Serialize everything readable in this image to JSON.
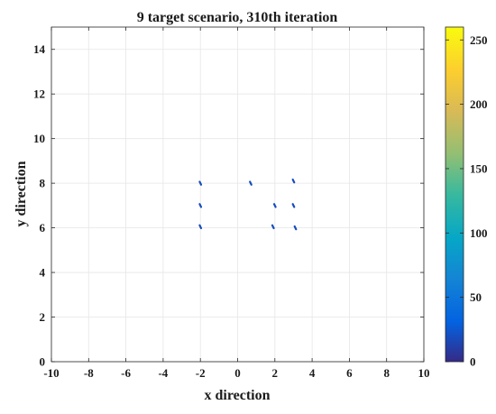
{
  "chart_data": {
    "type": "scatter",
    "title": "9 target scenario, 310th iteration",
    "xlabel": "x direction",
    "ylabel": "y direction",
    "xlim": [
      -10,
      10
    ],
    "ylim": [
      0,
      15
    ],
    "xticks": [
      -10,
      -8,
      -6,
      -4,
      -2,
      0,
      2,
      4,
      6,
      8,
      10
    ],
    "yticks": [
      0,
      2,
      4,
      6,
      8,
      10,
      12,
      14
    ],
    "grid": true,
    "colorbar": {
      "colormap": "parula",
      "range": [
        0,
        260
      ],
      "ticks": [
        0,
        50,
        100,
        150,
        200,
        250
      ]
    },
    "points": [
      {
        "x": -2.0,
        "y": 8.0,
        "value": 20
      },
      {
        "x": 0.7,
        "y": 8.0,
        "value": 20
      },
      {
        "x": 3.0,
        "y": 8.1,
        "value": 20
      },
      {
        "x": -2.0,
        "y": 7.0,
        "value": 20
      },
      {
        "x": 2.0,
        "y": 7.0,
        "value": 20
      },
      {
        "x": 3.0,
        "y": 7.0,
        "value": 20
      },
      {
        "x": -2.0,
        "y": 6.05,
        "value": 20
      },
      {
        "x": 1.9,
        "y": 6.05,
        "value": 20
      },
      {
        "x": 3.1,
        "y": 6.0,
        "value": 20
      }
    ]
  }
}
